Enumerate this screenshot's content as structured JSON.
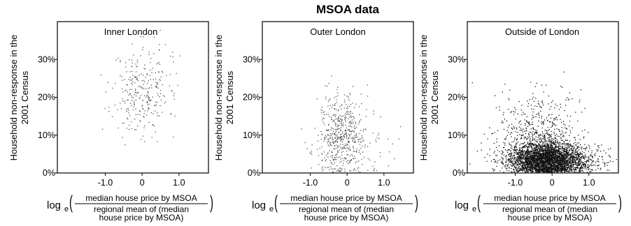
{
  "title": "MSOA data",
  "ylabel_lines": [
    "Household non-response in the",
    "2001 Census"
  ],
  "xlabel": {
    "prefix": "log",
    "base": "e",
    "numerator": "median house price by MSOA",
    "denominator_lines": [
      "regional mean of (median",
      "house price by MSOA)"
    ]
  },
  "chart_data": [
    {
      "type": "scatter",
      "title": "Inner London",
      "x_ticks": [
        "-1.0",
        "0",
        "1.0"
      ],
      "y_ticks": [
        "0%",
        "10%",
        "20%",
        "30%"
      ],
      "xlim": [
        -2.3,
        1.8
      ],
      "ylim": [
        0,
        40
      ],
      "point_color": "#555555",
      "clusters": [
        {
          "n": 260,
          "cx": -0.05,
          "cy": 21,
          "sx": 0.38,
          "sy": 5.5,
          "seed": 11
        },
        {
          "n": 40,
          "cx": 0.55,
          "cy": 28,
          "sx": 0.45,
          "sy": 6,
          "seed": 12
        }
      ]
    },
    {
      "type": "scatter",
      "title": "Outer London",
      "x_ticks": [
        "-1.0",
        "0",
        "1.0"
      ],
      "y_ticks": [
        "0%",
        "10%",
        "20%",
        "30%"
      ],
      "xlim": [
        -2.3,
        1.8
      ],
      "ylim": [
        0,
        40
      ],
      "point_color": "#555555",
      "clusters": [
        {
          "n": 560,
          "cx": -0.15,
          "cy": 10,
          "sx": 0.32,
          "sy": 5.5,
          "seed": 21
        },
        {
          "n": 40,
          "cx": 0.45,
          "cy": 7,
          "sx": 0.35,
          "sy": 4,
          "seed": 22
        }
      ]
    },
    {
      "type": "scatter",
      "title": "Outside of London",
      "x_ticks": [
        "-1.0",
        "0",
        "1.0"
      ],
      "y_ticks": [
        "0%",
        "10%",
        "20%",
        "30%"
      ],
      "xlim": [
        -2.3,
        1.8
      ],
      "ylim": [
        0,
        40
      ],
      "point_color": "#111111",
      "clusters": [
        {
          "n": 3400,
          "cx": -0.15,
          "cy": 3.5,
          "sx": 0.5,
          "sy": 2.2,
          "seed": 31
        },
        {
          "n": 500,
          "cx": -0.4,
          "cy": 8,
          "sx": 0.55,
          "sy": 4.5,
          "seed": 32
        },
        {
          "n": 120,
          "cx": -0.4,
          "cy": 15,
          "sx": 0.6,
          "sy": 4.5,
          "seed": 33
        },
        {
          "n": 150,
          "cx": 0.9,
          "cy": 3,
          "sx": 0.5,
          "sy": 2.0,
          "seed": 34
        }
      ]
    }
  ]
}
